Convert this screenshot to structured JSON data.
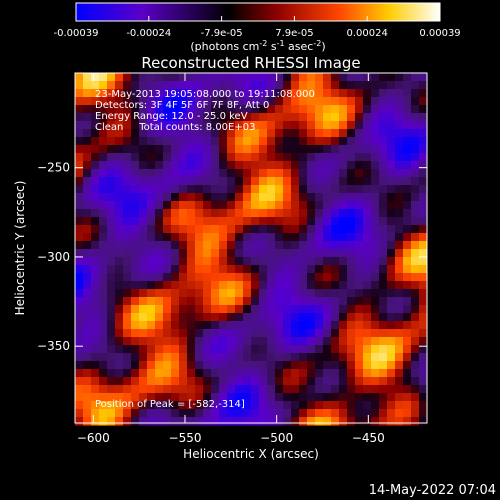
{
  "colorbar": {
    "ticks": [
      "-0.00039",
      "-0.00024",
      "-7.9e-05",
      "7.9e-05",
      "0.00024",
      "0.00039"
    ],
    "units_main": "(photons cm",
    "units_sup1": "-2",
    "units_mid1": " s",
    "units_sup2": "-1",
    "units_mid2": " asec",
    "units_sup3": "-2",
    "units_end": ")",
    "range": [
      -0.00039,
      0.00039
    ],
    "colors": [
      "#0000ff",
      "#5a00c8",
      "#000000",
      "#8c0000",
      "#ff4400",
      "#ffcc00",
      "#ffffff"
    ]
  },
  "chart_data": {
    "type": "heatmap",
    "title": "Reconstructed RHESSI Image",
    "xlabel": "Heliocentric X (arcsec)",
    "ylabel": "Heliocentric Y (arcsec)",
    "xlim": [
      -610,
      -418
    ],
    "ylim": [
      -393,
      -197
    ],
    "xticks": [
      -600,
      -550,
      -500,
      -450
    ],
    "yticks": [
      -350,
      -300,
      -250
    ],
    "xtick_labels": [
      "−600",
      "−550",
      "−500",
      "−450"
    ],
    "ytick_labels": [
      "−350",
      "−300",
      "−250"
    ],
    "annotations": [
      "23-May-2013 19:05:08.000 to 19:11:08.000",
      "Detectors: 3F 4F 5F 6F 7F 8F, Att 0",
      "Energy Range: 12.0 - 25.0 keV",
      "Clean     Total counts: 8.00E+03"
    ],
    "peak_label": "Position of Peak = [-582,-314]",
    "peak": [
      -582,
      -314
    ]
  },
  "footer": {
    "timestamp": "14-May-2022 07:04"
  }
}
